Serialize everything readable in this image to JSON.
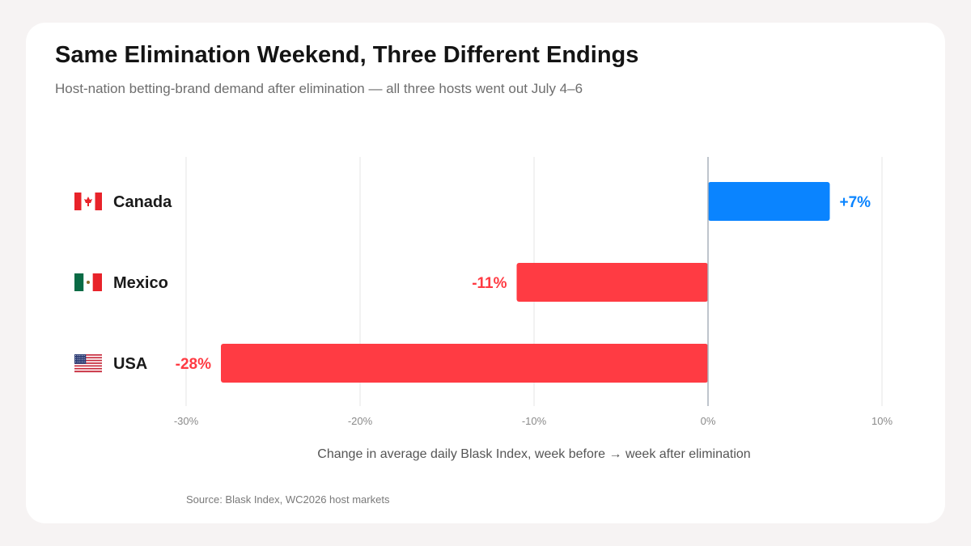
{
  "header": {
    "title": "Same Elimination Weekend, Three Different Endings",
    "subtitle": "Host-nation betting-brand demand after elimination — all three hosts went out July 4–6"
  },
  "footer": {
    "source": "Source: Blask Index, WC2026 host markets"
  },
  "colors": {
    "positive": "#0a84ff",
    "negative": "#ff3b43",
    "grid": "#e6e6e6",
    "zero_line": "#aab2bb",
    "tick": "#8a8a8a",
    "label": "#1a1a1a"
  },
  "chart_data": {
    "type": "bar",
    "orientation": "horizontal",
    "categories": [
      "Canada",
      "Mexico",
      "USA"
    ],
    "flags": [
      "canada-flag",
      "mexico-flag",
      "usa-flag"
    ],
    "values": [
      7,
      -11,
      -28
    ],
    "data_labels": [
      "+7%",
      "-11%",
      "-28%"
    ],
    "xlim": [
      -30,
      10
    ],
    "xticks": [
      -30,
      -20,
      -10,
      0,
      10
    ],
    "xtick_labels": [
      "-30%",
      "-20%",
      "-10%",
      "0%",
      "10%"
    ],
    "xlabel": "Change in average daily Blask Index, week before → week after elimination",
    "ylabel": "",
    "grid": true,
    "legend": "none"
  }
}
